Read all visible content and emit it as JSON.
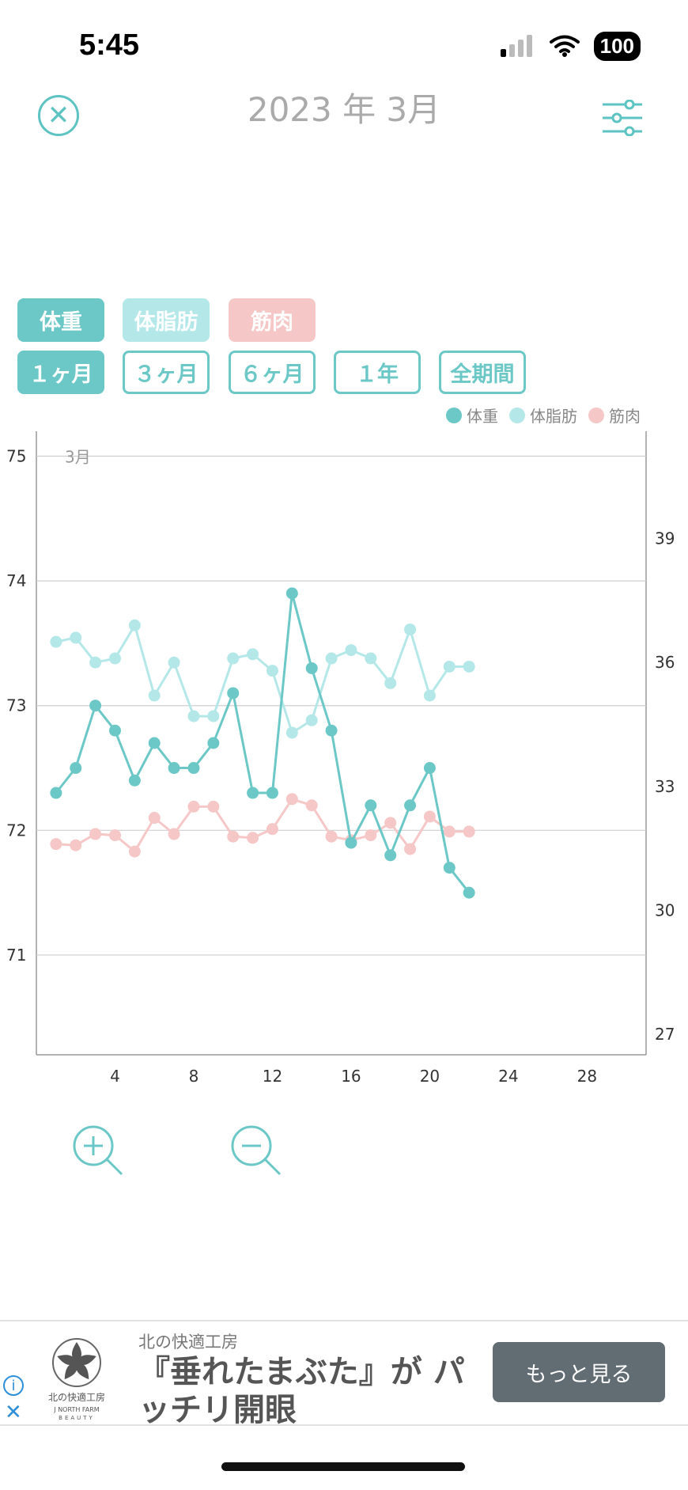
{
  "status_bar": {
    "time": "5:45",
    "battery": "100"
  },
  "header": {
    "title": "2023 年 3月"
  },
  "metric_chips": [
    {
      "label": "体重",
      "color": "#6bc8c6",
      "selected": true
    },
    {
      "label": "体脂肪",
      "color": "#b4e8e8",
      "selected": true
    },
    {
      "label": "筋肉",
      "color": "#f5c7c7",
      "selected": true
    }
  ],
  "period_chips": [
    {
      "label": "１ヶ月",
      "selected": true
    },
    {
      "label": "３ヶ月",
      "selected": false
    },
    {
      "label": "６ヶ月",
      "selected": false
    },
    {
      "label": "１年",
      "selected": false
    },
    {
      "label": "全期間",
      "selected": false
    }
  ],
  "legend": [
    {
      "label": "体重",
      "color": "#6bc8c6"
    },
    {
      "label": "体脂肪",
      "color": "#b4e8e8"
    },
    {
      "label": "筋肉",
      "color": "#f5c7c7"
    }
  ],
  "chart_data": {
    "type": "line",
    "month_label": "3月",
    "x_ticks": [
      4,
      8,
      12,
      16,
      20,
      24,
      28
    ],
    "xlim": [
      0,
      31
    ],
    "y_left": {
      "ticks": [
        71,
        72,
        73,
        74,
        75
      ],
      "lim": [
        70.2,
        75.2
      ]
    },
    "y_right": {
      "ticks": [
        27,
        30,
        33,
        36,
        39
      ],
      "lim": [
        26.5,
        41.6
      ]
    },
    "grid": true,
    "series": [
      {
        "name": "体重",
        "axis": "left",
        "color": "#6bc8c6",
        "x": [
          1,
          2,
          3,
          4,
          5,
          6,
          7,
          8,
          9,
          10,
          11,
          12,
          13,
          14,
          15,
          16,
          17,
          18,
          19,
          20,
          21,
          22
        ],
        "y": [
          72.3,
          72.5,
          73.0,
          72.8,
          72.4,
          72.7,
          72.5,
          72.5,
          72.7,
          73.1,
          72.3,
          72.3,
          73.9,
          73.3,
          72.8,
          71.9,
          72.2,
          71.8,
          72.2,
          72.5,
          71.7,
          71.5
        ]
      },
      {
        "name": "体脂肪",
        "axis": "right",
        "color": "#b4e8e8",
        "x": [
          1,
          2,
          3,
          4,
          5,
          6,
          7,
          8,
          9,
          10,
          11,
          12,
          13,
          14,
          15,
          16,
          17,
          18,
          19,
          20,
          21,
          22
        ],
        "y": [
          36.5,
          36.6,
          36.0,
          36.1,
          36.9,
          35.2,
          36.0,
          34.7,
          34.7,
          36.1,
          36.2,
          35.8,
          34.3,
          34.6,
          36.1,
          36.3,
          36.1,
          35.5,
          36.8,
          35.2,
          35.9,
          35.9
        ]
      },
      {
        "name": "筋肉",
        "axis": "left",
        "color": "#f5c7c7",
        "x": [
          1,
          2,
          3,
          4,
          5,
          6,
          7,
          8,
          9,
          10,
          11,
          12,
          13,
          14,
          15,
          16,
          17,
          18,
          19,
          20,
          21,
          22
        ],
        "y": [
          71.89,
          71.88,
          71.97,
          71.96,
          71.83,
          72.1,
          71.97,
          72.19,
          72.19,
          71.95,
          71.94,
          72.01,
          72.25,
          72.2,
          71.95,
          71.92,
          71.96,
          72.06,
          71.85,
          72.11,
          71.99,
          71.99
        ]
      }
    ]
  },
  "ad": {
    "brand": "北の快適工房",
    "headline": "『垂れたまぶた』が パッチリ開眼",
    "cta": "もっと見る",
    "logo_text": "北の快適工房",
    "logo_sub": "J NORTH FARM",
    "logo_sub2": "BEAUTY"
  }
}
